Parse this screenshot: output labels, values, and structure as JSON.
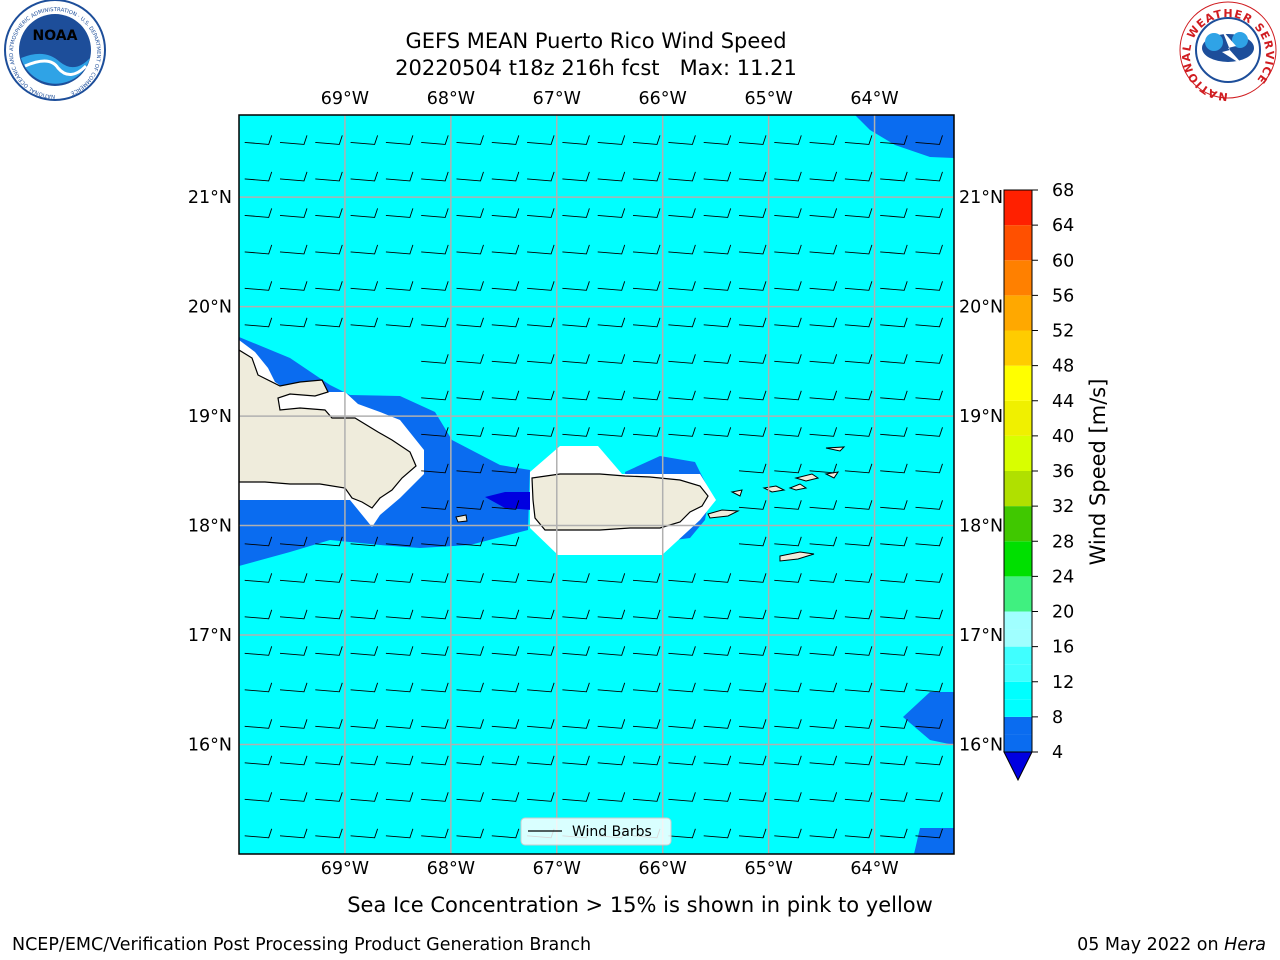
{
  "header": {
    "title_line1": "GEFS MEAN Puerto Rico Wind Speed",
    "title_line2": "20220504 t18z 216h fcst   Max: 11.21"
  },
  "logos": {
    "left": {
      "name": "noaa-logo",
      "text": "NOAA",
      "ring_text": "NATIONAL OCEANIC AND ATMOSPHERIC ADMINISTRATION · U.S. DEPARTMENT OF COMMERCE"
    },
    "right": {
      "name": "nws-logo",
      "ring_text": "NATIONAL WEATHER SERVICE"
    }
  },
  "chart_data": {
    "type": "heatmap",
    "title": "GEFS MEAN Puerto Rico Wind Speed",
    "subtitle": "20220504 t18z 216h fcst   Max: 11.21",
    "lon_ticks": [
      "69°W",
      "68°W",
      "67°W",
      "66°W",
      "65°W",
      "64°W"
    ],
    "lat_ticks": [
      "21°N",
      "20°N",
      "19°N",
      "18°N",
      "17°N",
      "16°N"
    ],
    "lon_values": [
      -69,
      -68,
      -67,
      -66,
      -65,
      -64
    ],
    "lat_values": [
      21,
      20,
      19,
      18,
      17,
      16
    ],
    "xlim": [
      -70,
      -63.25
    ],
    "ylim": [
      15,
      21.75
    ],
    "grid": true,
    "legend": {
      "label": "Wind Barbs",
      "placement": "bottom-center"
    },
    "colorbar": {
      "label": "Wind Speed [m/s]",
      "ticks": [
        4,
        8,
        12,
        16,
        20,
        24,
        28,
        32,
        36,
        40,
        44,
        48,
        52,
        56,
        60,
        64,
        68
      ],
      "levels": [
        4,
        6,
        8,
        10,
        12,
        14,
        16,
        18,
        20,
        24,
        28,
        32,
        36,
        40,
        44,
        48,
        52,
        56,
        60,
        64,
        68
      ],
      "colors": [
        "#0a6cf0",
        "#0a6cf0",
        "#00ffff",
        "#00ffff",
        "#40ffff",
        "#40ffff",
        "#a0ffff",
        "#a0ffff",
        "#40f080",
        "#00e000",
        "#40c800",
        "#b0e000",
        "#d8ff00",
        "#f0f000",
        "#ffff00",
        "#ffcc00",
        "#ffa800",
        "#ff8000",
        "#ff5000",
        "#ff2000"
      ],
      "under_color": "#0000e0"
    },
    "field": {
      "background_speed_range": [
        8,
        12
      ],
      "dominant_color": "#00ffff",
      "low_wind_color": "#0a6cf0",
      "min_color": "#0000e0",
      "max": 11.21
    },
    "caption": "Sea Ice Concentration > 15% is shown in pink to yellow"
  },
  "footer": {
    "left": "NCEP/EMC/Verification Post Processing Product Generation Branch",
    "right_date": "05 May 2022 on ",
    "right_host": "Hera"
  }
}
